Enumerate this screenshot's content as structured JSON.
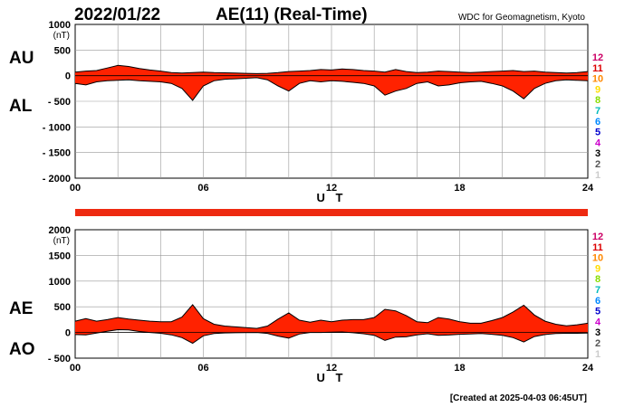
{
  "header": {
    "date": "2022/01/22",
    "title": "AE(11) (Real-Time)",
    "source": "WDC for Geomagnetism, Kyoto"
  },
  "footer": {
    "created": "[Created at 2025-04-03 06:45UT]"
  },
  "station_colors": [
    "#cc0066",
    "#dd0000",
    "#ff8800",
    "#ffdd00",
    "#88dd00",
    "#00bbbb",
    "#0088ff",
    "#0000cc",
    "#cc00cc",
    "#000000",
    "#555555",
    "#cccccc"
  ],
  "chart_data": [
    {
      "type": "area",
      "panel": "upper",
      "side_labels": [
        "AU",
        "AL"
      ],
      "unit": "(nT)",
      "xlabel": "U T",
      "xlim": [
        0,
        24
      ],
      "ylim": [
        -2000,
        1000
      ],
      "x_tick_labels": [
        "00",
        "06",
        "12",
        "18",
        "24"
      ],
      "y_tick_labels": [
        "1000",
        "500",
        "0",
        "- 500",
        "- 1000",
        "- 1500",
        "- 2000"
      ],
      "legend_labels": [
        "12",
        "11",
        "10",
        "9",
        "8",
        "7",
        "6",
        "5",
        "4",
        "3",
        "2",
        "1"
      ],
      "grid": true,
      "fill_color": "#ff2200",
      "series": [
        {
          "name": "AU",
          "x": [
            0,
            0.5,
            1,
            1.5,
            2,
            2.5,
            3,
            3.5,
            4,
            4.5,
            5,
            5.5,
            6,
            6.5,
            7,
            7.5,
            8,
            8.5,
            9,
            9.5,
            10,
            10.5,
            11,
            11.5,
            12,
            12.5,
            13,
            13.5,
            14,
            14.5,
            15,
            15.5,
            16,
            16.5,
            17,
            17.5,
            18,
            18.5,
            19,
            19.5,
            20,
            20.5,
            21,
            21.5,
            22,
            22.5,
            23,
            23.5,
            24
          ],
          "values": [
            70,
            90,
            100,
            150,
            200,
            180,
            140,
            110,
            90,
            60,
            50,
            60,
            70,
            60,
            55,
            50,
            45,
            40,
            45,
            60,
            80,
            90,
            100,
            120,
            110,
            130,
            120,
            100,
            90,
            70,
            120,
            80,
            60,
            70,
            90,
            80,
            70,
            60,
            70,
            80,
            90,
            100,
            80,
            90,
            70,
            60,
            50,
            60,
            80
          ]
        },
        {
          "name": "AL",
          "x": [
            0,
            0.5,
            1,
            1.5,
            2,
            2.5,
            3,
            3.5,
            4,
            4.5,
            5,
            5.5,
            6,
            6.5,
            7,
            7.5,
            8,
            8.5,
            9,
            9.5,
            10,
            10.5,
            11,
            11.5,
            12,
            12.5,
            13,
            13.5,
            14,
            14.5,
            15,
            15.5,
            16,
            16.5,
            17,
            17.5,
            18,
            18.5,
            19,
            19.5,
            20,
            20.5,
            21,
            21.5,
            22,
            22.5,
            23,
            23.5,
            24
          ],
          "values": [
            -150,
            -180,
            -120,
            -100,
            -90,
            -80,
            -100,
            -110,
            -120,
            -150,
            -250,
            -480,
            -200,
            -100,
            -70,
            -60,
            -50,
            -40,
            -80,
            -200,
            -300,
            -150,
            -100,
            -120,
            -100,
            -110,
            -130,
            -150,
            -200,
            -380,
            -300,
            -250,
            -150,
            -120,
            -200,
            -180,
            -140,
            -120,
            -110,
            -150,
            -200,
            -300,
            -450,
            -250,
            -150,
            -100,
            -80,
            -90,
            -100
          ]
        }
      ]
    },
    {
      "type": "area",
      "panel": "lower",
      "side_labels": [
        "AE",
        "AO"
      ],
      "unit": "(nT)",
      "xlabel": "U T",
      "xlim": [
        0,
        24
      ],
      "ylim": [
        -500,
        2000
      ],
      "x_tick_labels": [
        "00",
        "06",
        "12",
        "18",
        "24"
      ],
      "y_tick_labels": [
        "2000",
        "1500",
        "1000",
        "500",
        "0",
        "- 500"
      ],
      "legend_labels": [
        "12",
        "11",
        "10",
        "9",
        "8",
        "7",
        "6",
        "5",
        "4",
        "3",
        "2",
        "1"
      ],
      "grid": true,
      "fill_color": "#ff2200",
      "series": [
        {
          "name": "AE",
          "x": [
            0,
            0.5,
            1,
            1.5,
            2,
            2.5,
            3,
            3.5,
            4,
            4.5,
            5,
            5.5,
            6,
            6.5,
            7,
            7.5,
            8,
            8.5,
            9,
            9.5,
            10,
            10.5,
            11,
            11.5,
            12,
            12.5,
            13,
            13.5,
            14,
            14.5,
            15,
            15.5,
            16,
            16.5,
            17,
            17.5,
            18,
            18.5,
            19,
            19.5,
            20,
            20.5,
            21,
            21.5,
            22,
            22.5,
            23,
            23.5,
            24
          ],
          "values": [
            220,
            270,
            220,
            250,
            290,
            260,
            240,
            220,
            210,
            210,
            300,
            540,
            270,
            160,
            125,
            110,
            95,
            80,
            125,
            260,
            380,
            240,
            200,
            240,
            210,
            240,
            250,
            250,
            290,
            450,
            420,
            330,
            210,
            190,
            290,
            260,
            210,
            180,
            180,
            230,
            290,
            400,
            530,
            340,
            220,
            160,
            130,
            150,
            180
          ]
        },
        {
          "name": "AO",
          "x": [
            0,
            0.5,
            1,
            1.5,
            2,
            2.5,
            3,
            3.5,
            4,
            4.5,
            5,
            5.5,
            6,
            6.5,
            7,
            7.5,
            8,
            8.5,
            9,
            9.5,
            10,
            10.5,
            11,
            11.5,
            12,
            12.5,
            13,
            13.5,
            14,
            14.5,
            15,
            15.5,
            16,
            16.5,
            17,
            17.5,
            18,
            18.5,
            19,
            19.5,
            20,
            20.5,
            21,
            21.5,
            22,
            22.5,
            23,
            23.5,
            24
          ],
          "values": [
            -40,
            -45,
            -10,
            25,
            55,
            50,
            20,
            0,
            -15,
            -45,
            -100,
            -210,
            -65,
            -20,
            -8,
            -5,
            -3,
            0,
            -18,
            -70,
            -110,
            -30,
            0,
            0,
            5,
            10,
            -5,
            -25,
            -55,
            -155,
            -90,
            -85,
            -45,
            -25,
            -55,
            -50,
            -35,
            -30,
            -20,
            -35,
            -55,
            -100,
            -185,
            -80,
            -40,
            -20,
            -15,
            -15,
            -10
          ]
        }
      ]
    }
  ]
}
